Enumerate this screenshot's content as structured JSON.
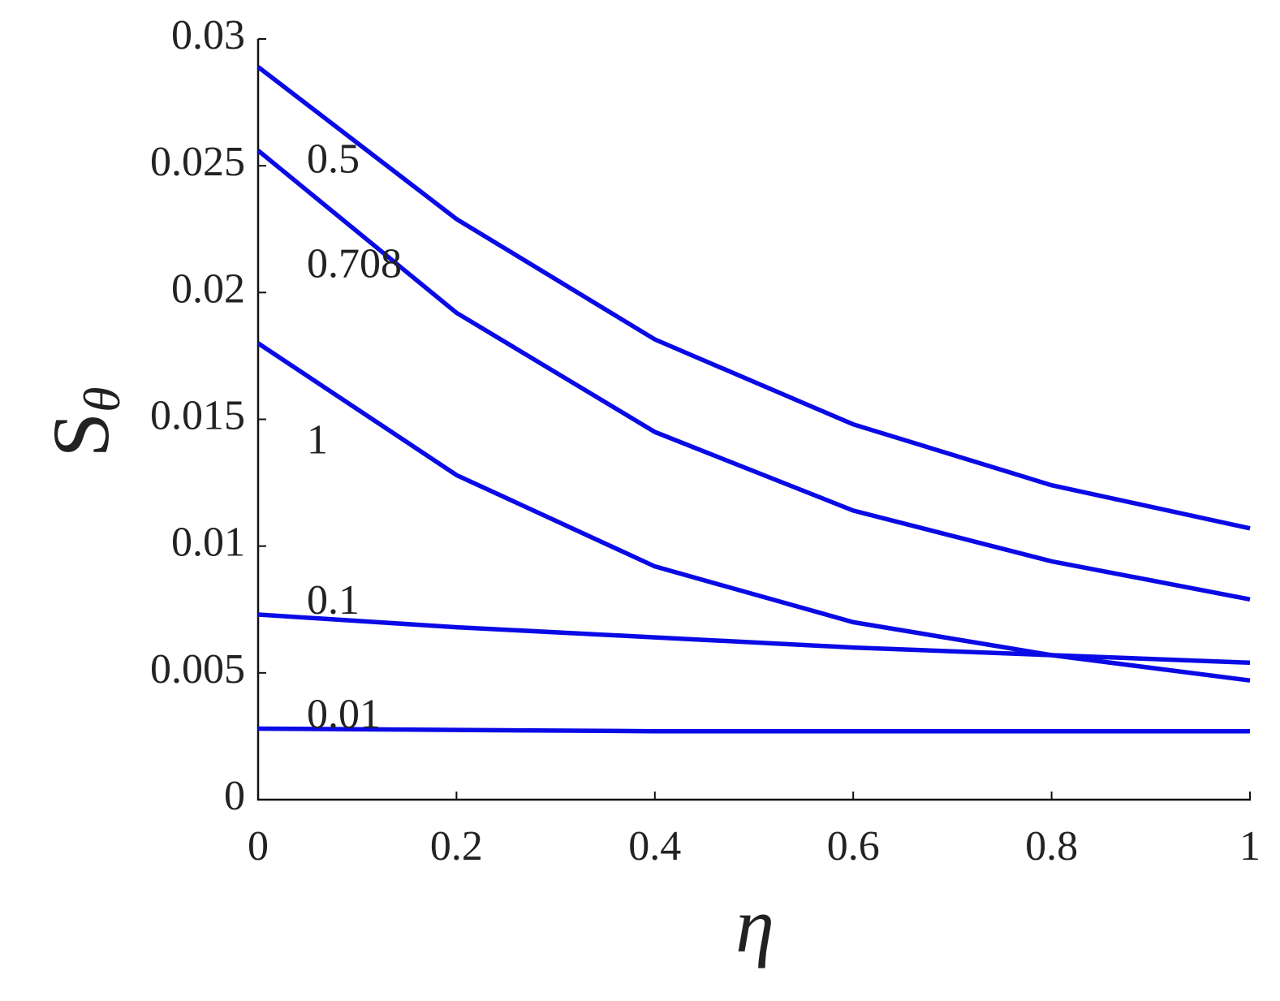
{
  "chart_data": {
    "type": "line",
    "x": [
      0,
      0.2,
      0.4,
      0.6,
      0.8,
      1
    ],
    "series": [
      {
        "name": "0.5",
        "color": "#0a0ae6",
        "values": [
          0.0289,
          0.0229,
          0.01815,
          0.0148,
          0.0124,
          0.0107
        ]
      },
      {
        "name": "0.708",
        "color": "#0a0ae6",
        "values": [
          0.0256,
          0.0192,
          0.0145,
          0.0114,
          0.0094,
          0.0079
        ]
      },
      {
        "name": "1",
        "color": "#0a0ae6",
        "values": [
          0.018,
          0.0128,
          0.0092,
          0.007,
          0.0057,
          0.0047
        ]
      },
      {
        "name": "0.1",
        "color": "#0a0ae6",
        "values": [
          0.0073,
          0.0068,
          0.0064,
          0.006,
          0.0057,
          0.0054
        ]
      },
      {
        "name": "0.01",
        "color": "#0a0ae6",
        "values": [
          0.0028,
          0.00275,
          0.0027,
          0.0027,
          0.0027,
          0.0027
        ]
      }
    ],
    "xlabel": "η",
    "ylabel": "S",
    "ylabel_subscript": "θ",
    "xlim": [
      0,
      1
    ],
    "xticks": [
      0,
      0.2,
      0.4,
      0.6,
      0.8,
      1
    ],
    "ylim": [
      0,
      0.03
    ],
    "yticks": [
      0,
      0.005,
      0.01,
      0.015,
      0.02,
      0.025,
      0.03
    ]
  }
}
